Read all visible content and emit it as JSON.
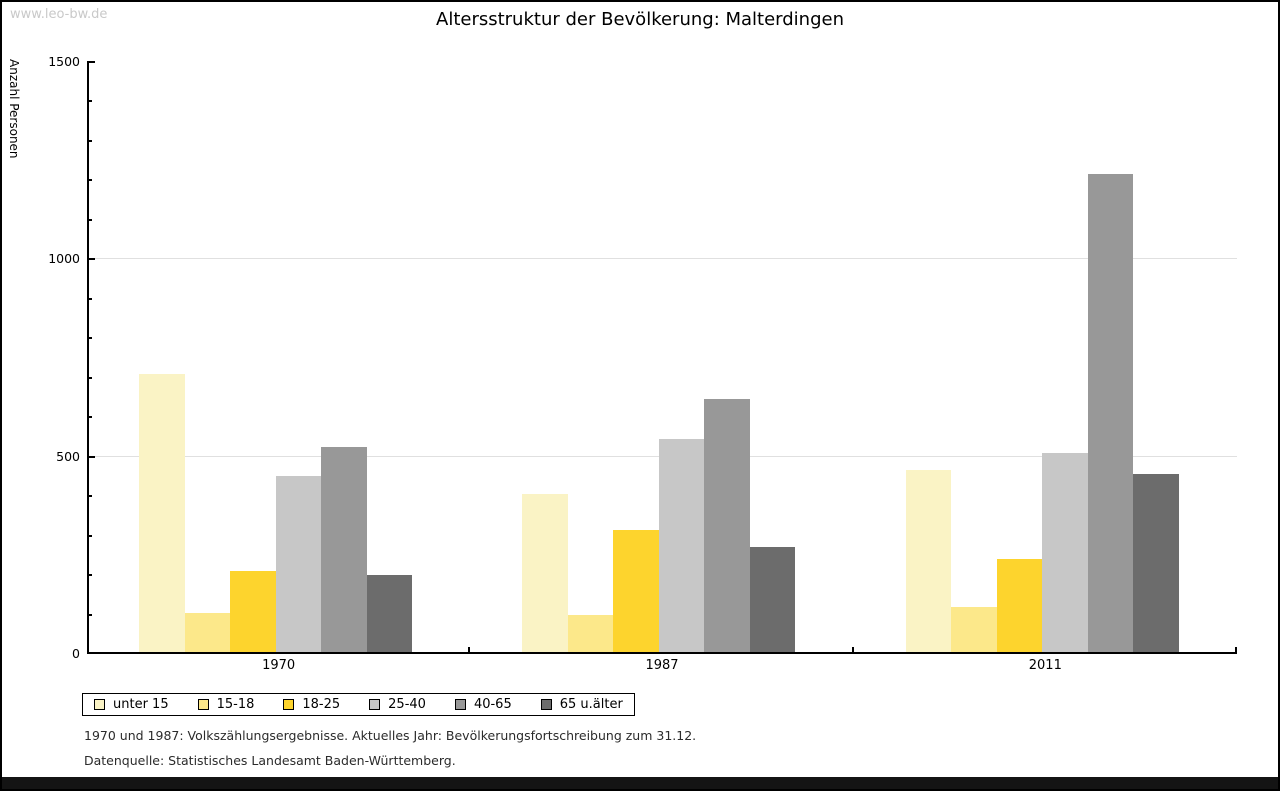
{
  "page": {
    "watermark": "www.leo-bw.de"
  },
  "chart_data": {
    "type": "bar",
    "title": "Altersstruktur der Bevölkerung: Malterdingen",
    "xlabel": "",
    "ylabel": "Anzahl Personen",
    "categories": [
      "1970",
      "1987",
      "2011"
    ],
    "series": [
      {
        "name": "unter 15",
        "color": "#FAF3C5",
        "values": [
          710,
          405,
          465
        ]
      },
      {
        "name": "15-18",
        "color": "#FCE88A",
        "values": [
          105,
          100,
          120
        ]
      },
      {
        "name": "18-25",
        "color": "#FDD42D",
        "values": [
          210,
          315,
          240
        ]
      },
      {
        "name": "25-40",
        "color": "#C7C7C7",
        "values": [
          450,
          545,
          510
        ]
      },
      {
        "name": "40-65",
        "color": "#989898",
        "values": [
          525,
          645,
          1215
        ]
      },
      {
        "name": "65 u.älter",
        "color": "#6C6C6C",
        "values": [
          200,
          270,
          455
        ]
      }
    ],
    "ylim": [
      0,
      1500
    ],
    "y_major_step": 500,
    "y_minor_step": 100,
    "gridlines": [
      500,
      1000
    ],
    "grid": "horizontal-majors-only",
    "legend_position": "bottom",
    "annotations": [
      "1970 und 1987: Volkszählungsergebnisse. Aktuelles Jahr: Bevölkerungsfortschreibung zum 31.12.",
      "Datenquelle: Statistisches Landesamt Baden-Württemberg."
    ],
    "axis_color": "#000000",
    "gridline_color": "#e0e0e0"
  }
}
